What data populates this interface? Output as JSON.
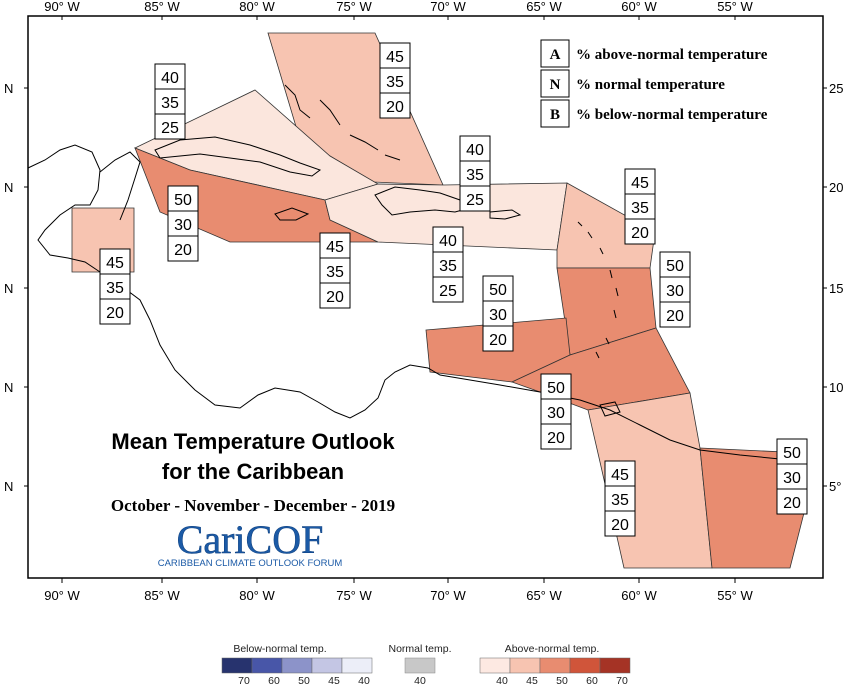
{
  "map": {
    "lon_ticks": [
      "90° W",
      "85° W",
      "80° W",
      "75° W",
      "70° W",
      "65° W",
      "60° W",
      "55° W"
    ],
    "lat_ticks_left": [
      "N",
      "N",
      "N",
      "N",
      "N"
    ],
    "lat_ticks_right": [
      "25",
      "20",
      "15",
      "10",
      "5°"
    ]
  },
  "legend_key": [
    {
      "letter": "A",
      "text": "% above-normal temperature"
    },
    {
      "letter": "N",
      "text": "% normal temperature"
    },
    {
      "letter": "B",
      "text": "% below-normal temperature"
    }
  ],
  "regions": [
    {
      "name": "bahamas",
      "probs": [
        "45",
        "35",
        "20"
      ],
      "color": "#f7c4b1"
    },
    {
      "name": "cuba",
      "probs": [
        "40",
        "35",
        "25"
      ],
      "color": "#fbe6dd"
    },
    {
      "name": "cayman-jamaica",
      "probs": [
        "50",
        "30",
        "20"
      ],
      "color": "#e88c70"
    },
    {
      "name": "belize",
      "probs": [
        "45",
        "35",
        "20"
      ],
      "color": "#f7c4b1"
    },
    {
      "name": "jamaica-haiti",
      "probs": [
        "45",
        "35",
        "20"
      ],
      "color": "#f7c4b1"
    },
    {
      "name": "hispaniola",
      "probs": [
        "40",
        "35",
        "25"
      ],
      "color": "#fbe6dd"
    },
    {
      "name": "puerto-rico",
      "probs": [
        "40",
        "35",
        "25"
      ],
      "color": "#fbe6dd"
    },
    {
      "name": "leeward-islands",
      "probs": [
        "45",
        "35",
        "20"
      ],
      "color": "#f7c4b1"
    },
    {
      "name": "windward-islands",
      "probs": [
        "50",
        "30",
        "20"
      ],
      "color": "#e88c70"
    },
    {
      "name": "abc-islands",
      "probs": [
        "50",
        "30",
        "20"
      ],
      "color": "#e88c70"
    },
    {
      "name": "trinidad-barbados",
      "probs": [
        "50",
        "30",
        "20"
      ],
      "color": "#e88c70"
    },
    {
      "name": "guyana",
      "probs": [
        "45",
        "35",
        "20"
      ],
      "color": "#f7c4b1"
    },
    {
      "name": "suriname-guiana",
      "probs": [
        "50",
        "30",
        "20"
      ],
      "color": "#e88c70"
    }
  ],
  "title": {
    "line1": "Mean Temperature Outlook",
    "line2": "for the Caribbean",
    "period": "October - November - December - 2019"
  },
  "logo": {
    "name": "CariCOF",
    "subtitle": "CARIBBEAN CLIMATE OUTLOOK FORUM",
    "color": "#1b5aa6"
  },
  "color_legend": {
    "below": {
      "title": "Below-normal temp.",
      "ticks": [
        "70",
        "60",
        "50",
        "45",
        "40"
      ],
      "colors": [
        "#27336e",
        "#4856a8",
        "#8c93c9",
        "#c4c6e4",
        "#eceef8"
      ]
    },
    "normal": {
      "title": "Normal temp.",
      "ticks": [
        "40"
      ],
      "color": "#c8c8c8"
    },
    "above": {
      "title": "Above-normal temp.",
      "ticks": [
        "40",
        "45",
        "50",
        "60",
        "70"
      ],
      "colors": [
        "#fde9e2",
        "#f7c4b1",
        "#e88c70",
        "#d0553a",
        "#a53325"
      ]
    }
  }
}
